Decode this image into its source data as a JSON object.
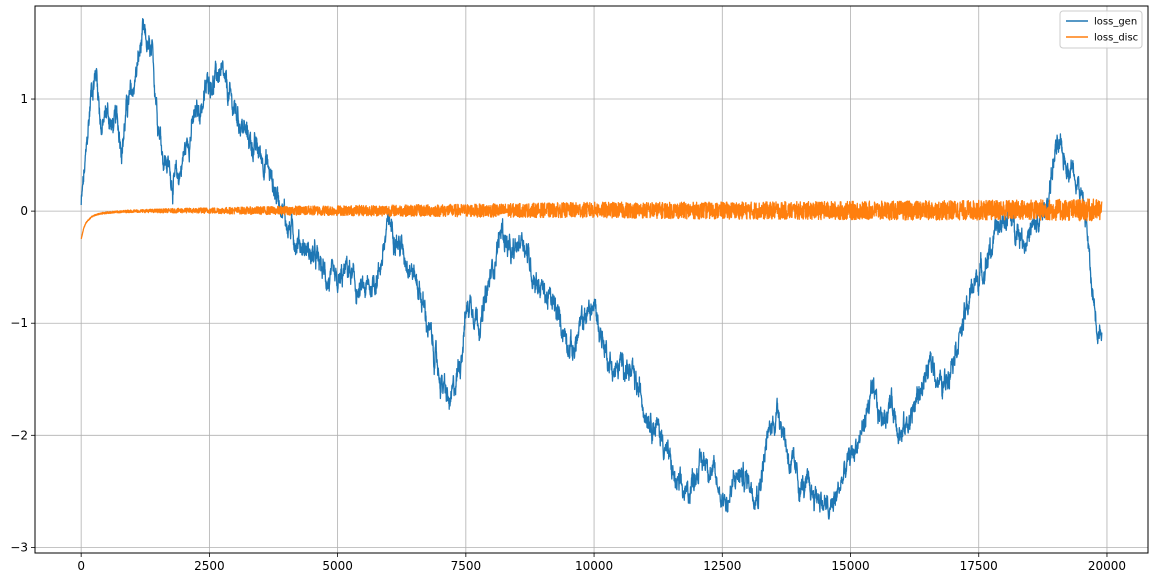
{
  "chart_data": {
    "type": "line",
    "title": "",
    "xlabel": "",
    "ylabel": "",
    "xlim": [
      -900,
      20800
    ],
    "ylim": [
      -3.05,
      1.83
    ],
    "xticks": [
      0,
      2500,
      5000,
      7500,
      10000,
      12500,
      15000,
      17500,
      20000
    ],
    "xtick_labels": [
      "0",
      "2500",
      "5000",
      "7500",
      "10000",
      "12500",
      "15000",
      "17500",
      "20000"
    ],
    "yticks": [
      -3,
      -2,
      -1,
      0,
      1
    ],
    "ytick_labels": [
      "−3",
      "−2",
      "−1",
      "0",
      "1"
    ],
    "grid": true,
    "legend_position": "top-right",
    "series": [
      {
        "name": "loss_gen",
        "color": "#1f77b4",
        "noise": 0.06,
        "x": [
          0,
          100,
          200,
          300,
          400,
          500,
          600,
          700,
          800,
          900,
          1000,
          1100,
          1200,
          1300,
          1400,
          1500,
          1600,
          1700,
          1800,
          1900,
          2000,
          2200,
          2400,
          2500,
          2600,
          2700,
          2800,
          3000,
          3200,
          3400,
          3600,
          3800,
          3900,
          4000,
          4200,
          4400,
          4600,
          4800,
          5000,
          5200,
          5400,
          5600,
          5800,
          6000,
          6100,
          6200,
          6400,
          6600,
          6800,
          7000,
          7200,
          7400,
          7500,
          7600,
          7800,
          8000,
          8200,
          8400,
          8600,
          8800,
          9000,
          9200,
          9400,
          9600,
          9800,
          10000,
          10200,
          10400,
          10600,
          10800,
          11000,
          11200,
          11400,
          11600,
          11800,
          12000,
          12200,
          12400,
          12600,
          12800,
          13000,
          13200,
          13400,
          13600,
          13800,
          14000,
          14200,
          14400,
          14600,
          14800,
          15000,
          15200,
          15400,
          15600,
          15800,
          16000,
          16200,
          16400,
          16600,
          16800,
          17000,
          17200,
          17400,
          17600,
          17800,
          18000,
          18200,
          18400,
          18600,
          18800,
          19000,
          19200,
          19400,
          19600,
          19700,
          19800,
          19900
        ],
        "values": [
          0.05,
          0.5,
          1.1,
          1.25,
          0.7,
          0.9,
          0.75,
          0.8,
          0.6,
          0.95,
          1.05,
          1.3,
          1.55,
          1.45,
          1.3,
          0.85,
          0.5,
          0.4,
          0.25,
          0.3,
          0.5,
          0.8,
          1.0,
          1.2,
          1.15,
          1.25,
          1.1,
          0.9,
          0.7,
          0.55,
          0.45,
          0.15,
          0.1,
          -0.1,
          -0.25,
          -0.35,
          -0.45,
          -0.6,
          -0.7,
          -0.5,
          -0.75,
          -0.7,
          -0.55,
          -0.1,
          -0.15,
          -0.3,
          -0.45,
          -0.7,
          -1.1,
          -1.5,
          -1.75,
          -1.3,
          -0.9,
          -0.8,
          -1.0,
          -0.55,
          -0.15,
          -0.45,
          -0.2,
          -0.55,
          -0.7,
          -0.85,
          -1.05,
          -1.25,
          -0.95,
          -0.85,
          -1.2,
          -1.45,
          -1.35,
          -1.55,
          -1.75,
          -1.9,
          -2.1,
          -2.45,
          -2.55,
          -2.3,
          -2.2,
          -2.45,
          -2.6,
          -2.35,
          -2.4,
          -2.5,
          -2.0,
          -1.75,
          -2.2,
          -2.45,
          -2.5,
          -2.55,
          -2.7,
          -2.45,
          -2.2,
          -2.0,
          -1.65,
          -1.85,
          -1.7,
          -2.0,
          -1.8,
          -1.55,
          -1.35,
          -1.6,
          -1.25,
          -1.0,
          -0.65,
          -0.5,
          -0.25,
          -0.05,
          -0.1,
          -0.25,
          -0.15,
          0.0,
          0.55,
          0.45,
          0.35,
          -0.1,
          -0.7,
          -0.95,
          -1.1
        ]
      },
      {
        "name": "loss_disc",
        "color": "#ff7f0e",
        "noise": 0.025,
        "x": [
          0,
          50,
          100,
          200,
          300,
          400,
          600,
          1000,
          2000,
          4000,
          6000,
          8000,
          10000,
          12000,
          14000,
          16000,
          18000,
          19900
        ],
        "values": [
          -0.25,
          -0.15,
          -0.1,
          -0.05,
          -0.03,
          -0.02,
          -0.01,
          0.0,
          0.005,
          0.005,
          0.005,
          0.005,
          0.01,
          0.005,
          0.005,
          0.005,
          0.01,
          0.01
        ],
        "noise_ramp": [
          [
            0,
            0.002
          ],
          [
            1000,
            0.006
          ],
          [
            4000,
            0.02
          ],
          [
            10000,
            0.035
          ],
          [
            18000,
            0.045
          ],
          [
            19900,
            0.05
          ]
        ]
      }
    ]
  }
}
